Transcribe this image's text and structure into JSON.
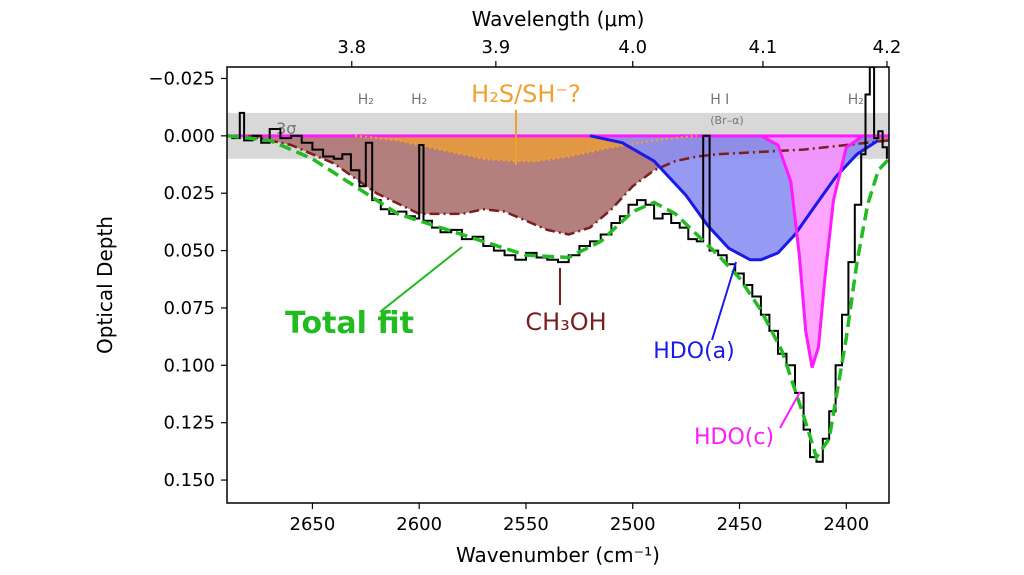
{
  "chart_data": {
    "type": "line",
    "title": "",
    "xlabel": "Wavenumber (cm⁻¹)",
    "ylabel": "Optical Depth",
    "x2label": "Wavelength (μm)",
    "xlim": [
      2690,
      2380
    ],
    "ylim": [
      0.16,
      -0.03
    ],
    "x_ticks": [
      2650,
      2600,
      2550,
      2500,
      2450,
      2400
    ],
    "y_ticks": [
      -0.025,
      0.0,
      0.025,
      0.05,
      0.075,
      0.1,
      0.125,
      0.15
    ],
    "y_tick_labels": [
      "−0.025",
      "0.000",
      "0.025",
      "0.050",
      "0.075",
      "0.100",
      "0.125",
      "0.150"
    ],
    "x2_ticks": [
      3.8,
      3.9,
      4.0,
      4.1,
      4.2
    ],
    "x2_tick_labels": [
      "3.8",
      "3.9",
      "4.0",
      "4.1",
      "4.2"
    ],
    "band": {
      "label": "3σ",
      "y_range": [
        -0.01,
        0.01
      ]
    },
    "colors": {
      "observed": "#000000",
      "total_fit": "#22bb22",
      "ch3oh": "#7a1f1f",
      "ch3oh_fill": "#b07878",
      "h2s": "#f0a030",
      "hdo_a": "#1a1ae8",
      "hdo_a_fill": "#8c8ff2",
      "hdo_c": "#ff1aff",
      "hdo_c_fill": "#ff96ff",
      "band": "#d8d8d8",
      "line_label": "#777777"
    },
    "series": [
      {
        "key": "observed",
        "x": [
          2688,
          2684,
          2682,
          2678,
          2674,
          2670,
          2665,
          2660,
          2655,
          2650,
          2645,
          2640,
          2636,
          2632,
          2628,
          2625,
          2622,
          2618,
          2614,
          2610,
          2606,
          2602,
          2600,
          2598,
          2594,
          2590,
          2585,
          2580,
          2575,
          2570,
          2565,
          2560,
          2555,
          2550,
          2545,
          2540,
          2535,
          2530,
          2525,
          2520,
          2515,
          2510,
          2506,
          2502,
          2498,
          2494,
          2490,
          2486,
          2482,
          2478,
          2474,
          2470,
          2467,
          2464,
          2460,
          2456,
          2452,
          2448,
          2444,
          2440,
          2436,
          2432,
          2428,
          2424,
          2420,
          2417,
          2414,
          2411,
          2408,
          2405,
          2402,
          2399,
          2396,
          2393,
          2391,
          2389,
          2387,
          2385,
          2383,
          2381
        ],
        "y": [
          0.001,
          -0.01,
          0.002,
          0.0,
          0.003,
          -0.003,
          0.001,
          0.0,
          0.003,
          0.006,
          0.009,
          0.01,
          0.008,
          0.015,
          0.022,
          0.003,
          0.028,
          0.032,
          0.034,
          0.033,
          0.035,
          0.036,
          0.004,
          0.037,
          0.04,
          0.042,
          0.041,
          0.045,
          0.044,
          0.048,
          0.05,
          0.052,
          0.054,
          0.051,
          0.053,
          0.054,
          0.055,
          0.052,
          0.048,
          0.046,
          0.043,
          0.038,
          0.035,
          0.03,
          0.028,
          0.03,
          0.036,
          0.034,
          0.038,
          0.04,
          0.045,
          0.046,
          0.0,
          0.05,
          0.052,
          0.056,
          0.06,
          0.065,
          0.07,
          0.078,
          0.085,
          0.095,
          0.1,
          0.112,
          0.128,
          0.14,
          0.142,
          0.132,
          0.12,
          0.1,
          0.078,
          0.055,
          0.03,
          0.008,
          -0.018,
          -0.03,
          0.001,
          -0.002,
          0.005,
          0.01
        ]
      },
      {
        "key": "total_fit",
        "name": "Total fit",
        "x": [
          2690,
          2670,
          2650,
          2630,
          2610,
          2590,
          2570,
          2550,
          2530,
          2515,
          2500,
          2490,
          2480,
          2470,
          2460,
          2450,
          2440,
          2430,
          2420,
          2414,
          2408,
          2400,
          2395,
          2390,
          2385,
          2380
        ],
        "y": [
          0.0,
          0.002,
          0.01,
          0.022,
          0.034,
          0.04,
          0.046,
          0.052,
          0.053,
          0.046,
          0.033,
          0.029,
          0.034,
          0.043,
          0.052,
          0.062,
          0.076,
          0.094,
          0.122,
          0.14,
          0.132,
          0.088,
          0.055,
          0.03,
          0.015,
          0.01
        ]
      },
      {
        "key": "ch3oh",
        "name": "CH₃OH",
        "x": [
          2680,
          2660,
          2640,
          2620,
          2600,
          2580,
          2570,
          2560,
          2550,
          2540,
          2530,
          2520,
          2510,
          2500,
          2490,
          2480,
          2470,
          2460,
          2440,
          2420,
          2400,
          2380
        ],
        "y": [
          0.0,
          0.004,
          0.012,
          0.025,
          0.034,
          0.034,
          0.032,
          0.033,
          0.037,
          0.041,
          0.043,
          0.04,
          0.032,
          0.022,
          0.015,
          0.011,
          0.009,
          0.008,
          0.007,
          0.006,
          0.004,
          0.002
        ]
      },
      {
        "key": "h2s",
        "name": "H₂S/SH⁻?",
        "x": [
          2630,
          2610,
          2590,
          2570,
          2555,
          2545,
          2530,
          2510,
          2490,
          2470
        ],
        "y": [
          0.0,
          0.002,
          0.006,
          0.01,
          0.011,
          0.011,
          0.009,
          0.005,
          0.002,
          0.0
        ]
      },
      {
        "key": "hdo_a",
        "name": "HDO(a)",
        "x": [
          2520,
          2505,
          2490,
          2475,
          2465,
          2455,
          2445,
          2440,
          2432,
          2424,
          2415,
          2405,
          2395,
          2385
        ],
        "y": [
          0.0,
          0.003,
          0.011,
          0.026,
          0.039,
          0.049,
          0.054,
          0.054,
          0.051,
          0.043,
          0.031,
          0.018,
          0.008,
          0.002
        ]
      },
      {
        "key": "hdo_c",
        "name": "HDO(c)",
        "x": [
          2440,
          2432,
          2426,
          2422,
          2419,
          2416,
          2413,
          2410,
          2406,
          2400,
          2392
        ],
        "y": [
          0.0,
          0.004,
          0.02,
          0.052,
          0.085,
          0.101,
          0.092,
          0.062,
          0.028,
          0.005,
          0.0
        ]
      }
    ],
    "annotations": [
      {
        "key": "h2_1",
        "label": "H₂",
        "x": 2625
      },
      {
        "key": "h2_2",
        "label": "H₂",
        "x": 2600
      },
      {
        "key": "hi",
        "label": "H I",
        "sublabel": "(Br–α)",
        "x": 2467
      },
      {
        "key": "h2_3",
        "label": "H₂",
        "x": 2389
      }
    ]
  }
}
